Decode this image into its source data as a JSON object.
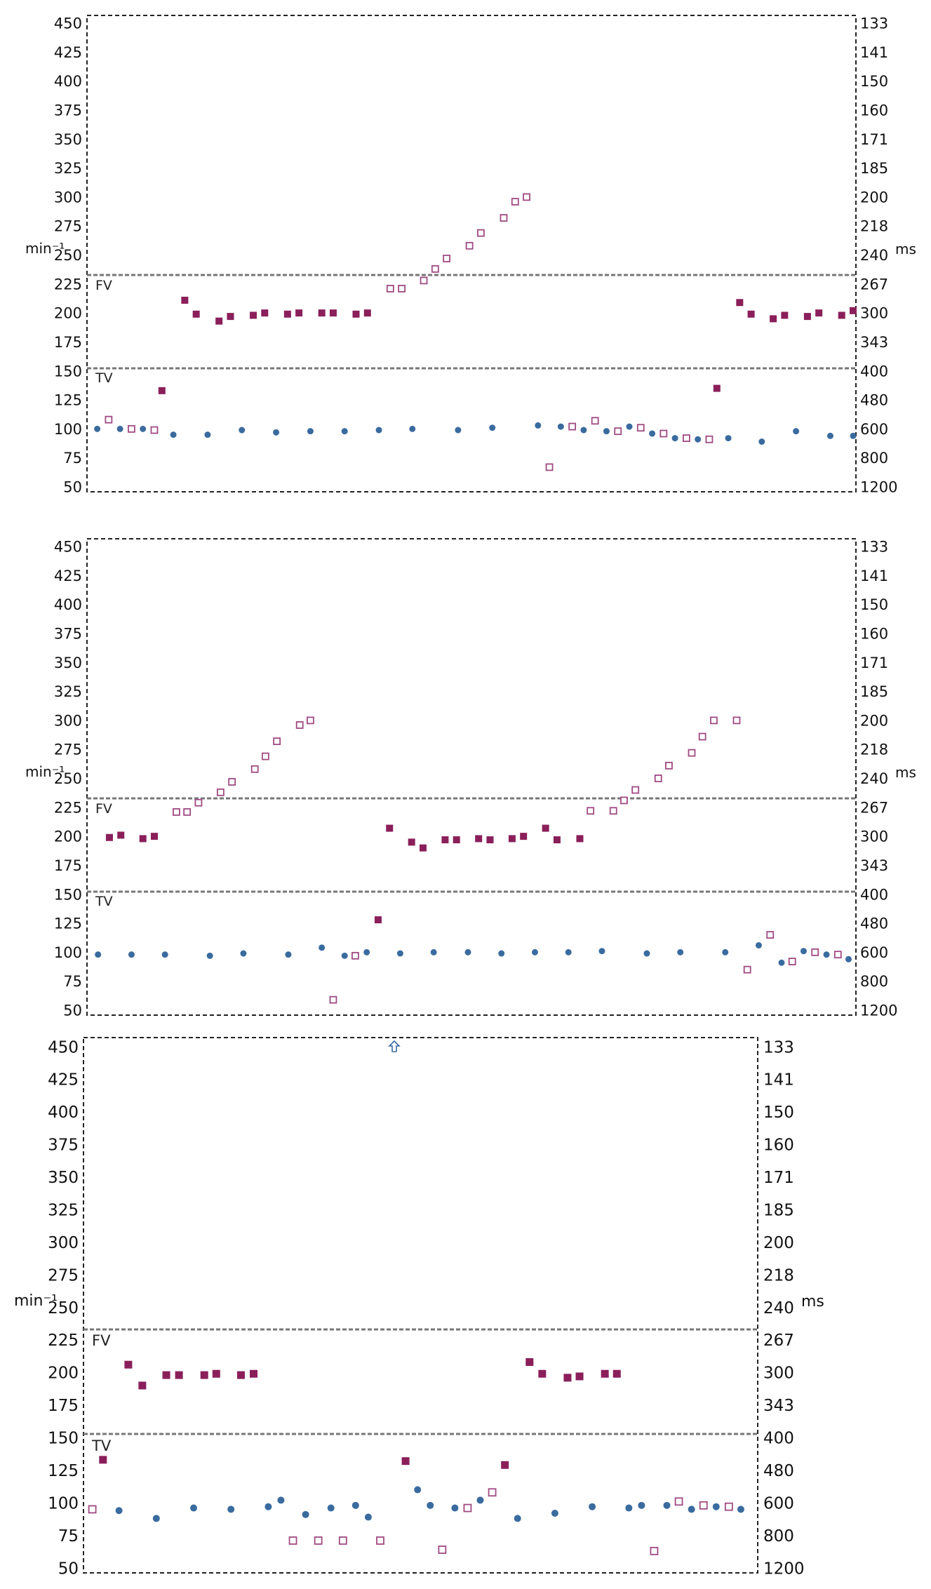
{
  "chart_data": [
    {
      "type": "scatter",
      "left_axis_label": "min⁻¹",
      "right_axis_label": "ms",
      "zone_labels": [
        "FV",
        "TV"
      ],
      "left_ticks": [
        "450",
        "425",
        "400",
        "375",
        "350",
        "325",
        "300",
        "275",
        "250",
        "225",
        "200",
        "175",
        "150",
        "125",
        "100",
        "75",
        "50"
      ],
      "right_ticks": [
        "133",
        "141",
        "150",
        "160",
        "171",
        "185",
        "200",
        "218",
        "240",
        "267",
        "300",
        "343",
        "400",
        "480",
        "600",
        "800",
        "1200"
      ],
      "ylim": [
        50,
        450
      ],
      "zone_lines": [
        232,
        152
      ],
      "colors": {
        "dot": "#3a6b9f",
        "filled_square": "#8a1f5a",
        "open_square": "#a04a82"
      },
      "series": {
        "dot": [
          [
            0.7,
            100
          ],
          [
            3.7,
            100
          ],
          [
            6.7,
            100
          ],
          [
            10.7,
            95
          ],
          [
            15.2,
            95
          ],
          [
            19.7,
            99
          ],
          [
            24.2,
            97
          ],
          [
            28.7,
            98
          ],
          [
            33.2,
            98
          ],
          [
            37.7,
            99
          ],
          [
            42.1,
            100
          ],
          [
            48.1,
            99
          ],
          [
            52.6,
            101
          ],
          [
            58.6,
            103
          ],
          [
            61.6,
            102
          ],
          [
            64.6,
            99
          ],
          [
            67.6,
            98
          ],
          [
            70.6,
            102
          ],
          [
            73.6,
            96
          ],
          [
            76.6,
            92
          ],
          [
            79.6,
            91
          ],
          [
            83.6,
            92
          ],
          [
            88.0,
            89
          ],
          [
            92.5,
            98
          ],
          [
            97.0,
            94
          ],
          [
            100,
            94
          ]
        ],
        "filled_square": [
          [
            9.2,
            133
          ],
          [
            12.2,
            211
          ],
          [
            13.7,
            199
          ],
          [
            16.7,
            193
          ],
          [
            18.2,
            197
          ],
          [
            21.2,
            198
          ],
          [
            22.7,
            200
          ],
          [
            25.7,
            199
          ],
          [
            27.2,
            200
          ],
          [
            30.2,
            200
          ],
          [
            31.7,
            200
          ],
          [
            34.7,
            199
          ],
          [
            36.2,
            200
          ],
          [
            82.1,
            135
          ],
          [
            85.1,
            209
          ],
          [
            86.6,
            199
          ],
          [
            89.5,
            195
          ],
          [
            91.0,
            198
          ],
          [
            94.0,
            197
          ],
          [
            95.5,
            200
          ],
          [
            98.5,
            198
          ],
          [
            100,
            202
          ]
        ],
        "open_square": [
          [
            2.2,
            108
          ],
          [
            5.2,
            100
          ],
          [
            8.2,
            99
          ],
          [
            39.2,
            221
          ],
          [
            40.7,
            221
          ],
          [
            43.6,
            228
          ],
          [
            45.1,
            238
          ],
          [
            46.6,
            247
          ],
          [
            49.6,
            258
          ],
          [
            51.1,
            269
          ],
          [
            54.1,
            282
          ],
          [
            55.6,
            296
          ],
          [
            57.1,
            300
          ],
          [
            60.1,
            67
          ],
          [
            63.1,
            102
          ],
          [
            66.1,
            107
          ],
          [
            69.1,
            98
          ],
          [
            72.1,
            101
          ],
          [
            75.1,
            96
          ],
          [
            78.1,
            92
          ],
          [
            81.1,
            91
          ]
        ]
      }
    },
    {
      "type": "scatter",
      "left_axis_label": "min⁻¹",
      "right_axis_label": "ms",
      "zone_labels": [
        "FV",
        "TV"
      ],
      "left_ticks": [
        "450",
        "425",
        "400",
        "375",
        "350",
        "325",
        "300",
        "275",
        "250",
        "225",
        "200",
        "175",
        "150",
        "125",
        "100",
        "75",
        "50"
      ],
      "right_ticks": [
        "133",
        "141",
        "150",
        "160",
        "171",
        "185",
        "200",
        "218",
        "240",
        "267",
        "300",
        "343",
        "400",
        "480",
        "600",
        "800",
        "1200"
      ],
      "ylim": [
        50,
        450
      ],
      "zone_lines": [
        232,
        152
      ],
      "colors": {
        "dot": "#3a6b9f",
        "filled_square": "#8a1f5a",
        "open_square": "#a04a82"
      },
      "series": {
        "dot": [
          [
            0.8,
            98
          ],
          [
            5.2,
            98
          ],
          [
            9.6,
            98
          ],
          [
            15.5,
            97
          ],
          [
            19.9,
            99
          ],
          [
            25.8,
            98
          ],
          [
            30.2,
            104
          ],
          [
            33.2,
            97
          ],
          [
            36.1,
            100
          ],
          [
            40.5,
            99
          ],
          [
            44.9,
            100
          ],
          [
            49.4,
            100
          ],
          [
            53.8,
            99
          ],
          [
            58.2,
            100
          ],
          [
            62.6,
            100
          ],
          [
            67.0,
            101
          ],
          [
            72.9,
            99
          ],
          [
            77.3,
            100
          ],
          [
            83.2,
            100
          ],
          [
            87.6,
            106
          ],
          [
            90.6,
            91
          ],
          [
            93.5,
            101
          ],
          [
            96.5,
            98
          ],
          [
            99.4,
            94
          ]
        ],
        "filled_square": [
          [
            2.3,
            199
          ],
          [
            3.8,
            201
          ],
          [
            6.7,
            198
          ],
          [
            8.2,
            200
          ],
          [
            37.6,
            128
          ],
          [
            39.1,
            207
          ],
          [
            42.0,
            195
          ],
          [
            43.5,
            190
          ],
          [
            46.4,
            197
          ],
          [
            47.9,
            197
          ],
          [
            50.8,
            198
          ],
          [
            52.3,
            197
          ],
          [
            55.2,
            198
          ],
          [
            56.7,
            200
          ],
          [
            59.6,
            207
          ],
          [
            61.1,
            197
          ],
          [
            64.1,
            198
          ]
        ],
        "open_square": [
          [
            11.1,
            221
          ],
          [
            12.5,
            221
          ],
          [
            14.0,
            229
          ],
          [
            16.9,
            238
          ],
          [
            18.4,
            247
          ],
          [
            21.4,
            258
          ],
          [
            22.8,
            269
          ],
          [
            24.3,
            282
          ],
          [
            27.3,
            296
          ],
          [
            28.7,
            300
          ],
          [
            31.7,
            59
          ],
          [
            34.6,
            97
          ],
          [
            65.5,
            222
          ],
          [
            68.5,
            222
          ],
          [
            69.9,
            231
          ],
          [
            71.4,
            240
          ],
          [
            74.4,
            250
          ],
          [
            75.8,
            261
          ],
          [
            78.8,
            272
          ],
          [
            80.2,
            286
          ],
          [
            81.7,
            300
          ],
          [
            84.7,
            300
          ],
          [
            86.1,
            85
          ],
          [
            89.1,
            115
          ],
          [
            92.0,
            92
          ],
          [
            95.0,
            100
          ],
          [
            98.0,
            98
          ]
        ]
      }
    },
    {
      "type": "scatter",
      "left_axis_label": "min⁻¹",
      "right_axis_label": "ms",
      "zone_labels": [
        "FV",
        "TV"
      ],
      "annotation": "up-arrow",
      "left_ticks": [
        "450",
        "425",
        "400",
        "375",
        "350",
        "325",
        "300",
        "275",
        "250",
        "225",
        "200",
        "175",
        "150",
        "125",
        "100",
        "75",
        "50"
      ],
      "right_ticks": [
        "133",
        "141",
        "150",
        "160",
        "171",
        "185",
        "200",
        "218",
        "240",
        "267",
        "300",
        "343",
        "400",
        "480",
        "600",
        "800",
        "1200"
      ],
      "ylim": [
        50,
        450
      ],
      "zone_lines": [
        232,
        152
      ],
      "colors": {
        "dot": "#3a6b9f",
        "filled_square": "#8a1f5a",
        "open_square": "#a04a82"
      },
      "series": {
        "dot": [
          [
            4.8,
            94
          ],
          [
            10.4,
            88
          ],
          [
            16.0,
            96
          ],
          [
            21.6,
            95
          ],
          [
            27.2,
            97
          ],
          [
            29.1,
            102
          ],
          [
            32.8,
            91
          ],
          [
            36.6,
            96
          ],
          [
            40.3,
            98
          ],
          [
            42.2,
            89
          ],
          [
            49.6,
            110
          ],
          [
            51.5,
            98
          ],
          [
            55.2,
            96
          ],
          [
            59.0,
            102
          ],
          [
            64.6,
            88
          ],
          [
            70.2,
            92
          ],
          [
            75.8,
            97
          ],
          [
            81.3,
            96
          ],
          [
            83.2,
            98
          ],
          [
            87.0,
            98
          ],
          [
            90.7,
            95
          ],
          [
            94.4,
            97
          ],
          [
            98.1,
            95
          ]
        ],
        "filled_square": [
          [
            2.4,
            133
          ],
          [
            6.2,
            206
          ],
          [
            8.3,
            190
          ],
          [
            11.9,
            198
          ],
          [
            13.8,
            198
          ],
          [
            17.6,
            198
          ],
          [
            19.4,
            199
          ],
          [
            23.1,
            198
          ],
          [
            25.0,
            199
          ],
          [
            47.8,
            132
          ],
          [
            62.7,
            129
          ],
          [
            66.4,
            208
          ],
          [
            68.3,
            199
          ],
          [
            72.1,
            196
          ],
          [
            73.9,
            197
          ],
          [
            77.7,
            199
          ],
          [
            79.5,
            199
          ]
        ],
        "open_square": [
          [
            0.8,
            95
          ],
          [
            30.9,
            71
          ],
          [
            34.7,
            71
          ],
          [
            38.4,
            71
          ],
          [
            44.0,
            71
          ],
          [
            53.3,
            64
          ],
          [
            57.1,
            96
          ],
          [
            60.8,
            108
          ],
          [
            85.1,
            63
          ],
          [
            88.8,
            101
          ],
          [
            92.5,
            98
          ],
          [
            96.3,
            97
          ]
        ]
      }
    }
  ]
}
